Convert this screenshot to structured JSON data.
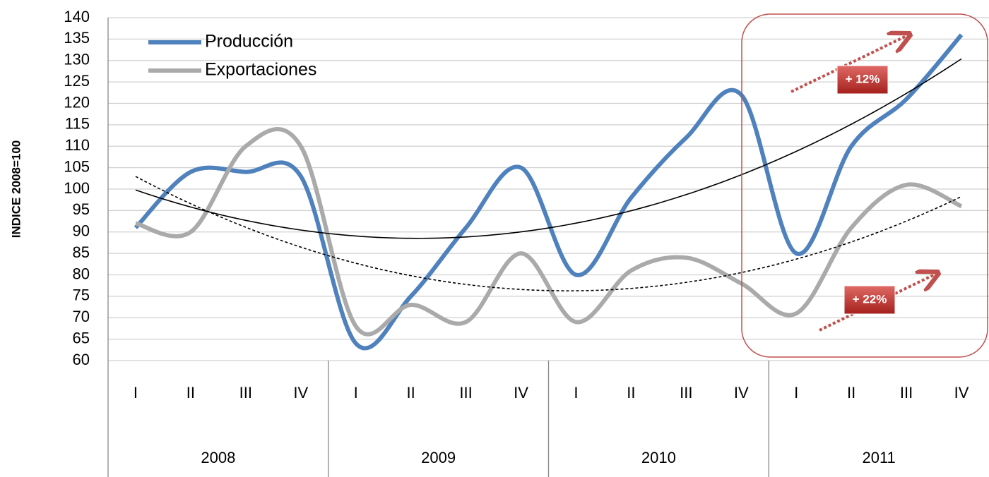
{
  "chart_data": {
    "type": "line",
    "y_label": "INDICE 2008=100",
    "categories": [
      "I",
      "II",
      "III",
      "IV",
      "I",
      "II",
      "III",
      "IV",
      "I",
      "II",
      "III",
      "IV",
      "I",
      "II",
      "III",
      "IV"
    ],
    "category_groups": [
      "2008",
      "2009",
      "2010",
      "2011"
    ],
    "series": [
      {
        "name": "Producción",
        "color": "#4f81bd",
        "trendline_color": "#000000",
        "trendline_dashed": false,
        "values": [
          91,
          104,
          104,
          103,
          64,
          75,
          91,
          105,
          80,
          98,
          112,
          122,
          85,
          110,
          121,
          136
        ]
      },
      {
        "name": "Exportaciones",
        "color": "#aaaaaa",
        "trendline_color": "#000000",
        "trendline_dashed": true,
        "values": [
          92,
          90,
          110,
          110,
          68,
          73,
          69,
          85,
          69,
          81,
          84,
          78,
          71,
          91,
          101,
          96
        ]
      }
    ],
    "ylim": [
      60,
      140
    ],
    "yticks": [
      60,
      65,
      70,
      75,
      80,
      85,
      90,
      95,
      100,
      105,
      110,
      115,
      120,
      125,
      130,
      135,
      140
    ],
    "grid": true,
    "legend": "top-left",
    "annotations": [
      "+ 12%",
      "+ 22%"
    ],
    "annotation_color": "#c0504d"
  }
}
